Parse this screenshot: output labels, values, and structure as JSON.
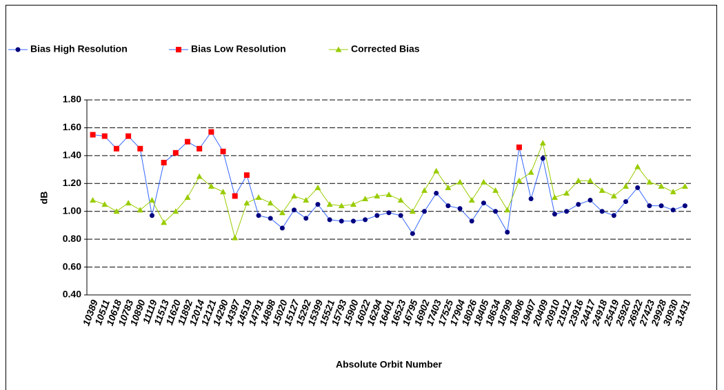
{
  "chart_data": {
    "type": "line",
    "x_label": "Absolute Orbit Number",
    "y_label": "dB",
    "categories": [
      "10389",
      "10511",
      "10618",
      "10783",
      "10890",
      "11119",
      "11513",
      "11620",
      "11892",
      "12014",
      "12121",
      "14290",
      "14397",
      "14519",
      "14791",
      "14898",
      "15020",
      "15127",
      "15292",
      "15399",
      "15521",
      "15793",
      "15900",
      "16022",
      "16294",
      "16401",
      "16523",
      "16795",
      "16902",
      "17403",
      "17525",
      "17904",
      "18026",
      "18405",
      "18634",
      "18799",
      "18906",
      "19407",
      "20409",
      "20910",
      "21912",
      "23916",
      "24417",
      "24918",
      "25419",
      "25920",
      "26922",
      "27423",
      "29928",
      "30930",
      "31431"
    ],
    "series": [
      {
        "name": "Bias High Resolution",
        "color": "#000080",
        "line_color": "#3366ff",
        "marker": "circle",
        "show_line": true,
        "values": [
          1.55,
          1.54,
          1.45,
          1.54,
          1.45,
          0.97,
          1.35,
          1.42,
          1.5,
          1.45,
          1.57,
          1.43,
          1.11,
          1.26,
          0.97,
          0.95,
          0.88,
          1.01,
          0.95,
          1.05,
          0.94,
          0.93,
          0.93,
          0.94,
          0.97,
          0.99,
          0.97,
          0.84,
          1.0,
          1.13,
          1.04,
          1.02,
          0.93,
          1.06,
          1.0,
          0.85,
          1.46,
          1.09,
          1.38,
          0.98,
          1.0,
          1.05,
          1.08,
          1.0,
          0.97,
          1.07,
          1.17,
          1.04,
          1.04,
          1.01,
          1.04
        ]
      },
      {
        "name": "Bias Low Resolution",
        "color": "#ff0000",
        "line_color": "#3366ff",
        "marker": "square",
        "show_line": false,
        "values": [
          1.55,
          1.54,
          1.45,
          1.54,
          1.45,
          null,
          1.35,
          1.42,
          1.5,
          1.45,
          1.57,
          1.43,
          1.11,
          1.26,
          null,
          null,
          null,
          null,
          null,
          null,
          null,
          null,
          null,
          null,
          null,
          null,
          null,
          null,
          null,
          null,
          null,
          null,
          null,
          null,
          null,
          null,
          1.46,
          null,
          null,
          null,
          null,
          null,
          null,
          null,
          null,
          null,
          null,
          null,
          null,
          null,
          null
        ]
      },
      {
        "name": "Corrected Bias",
        "color": "#99cc00",
        "line_color": "#99cc00",
        "marker": "triangle",
        "show_line": true,
        "values": [
          1.08,
          1.05,
          1.0,
          1.06,
          1.01,
          1.08,
          0.92,
          1.0,
          1.1,
          1.25,
          1.18,
          1.14,
          0.81,
          1.06,
          1.1,
          1.06,
          0.99,
          1.11,
          1.08,
          1.17,
          1.05,
          1.04,
          1.05,
          1.09,
          1.11,
          1.12,
          1.08,
          1.0,
          1.15,
          1.29,
          1.17,
          1.21,
          1.08,
          1.21,
          1.15,
          1.01,
          1.22,
          1.28,
          1.49,
          1.1,
          1.13,
          1.22,
          1.22,
          1.15,
          1.11,
          1.18,
          1.32,
          1.21,
          1.18,
          1.14,
          1.18
        ]
      }
    ],
    "ylim": [
      0.4,
      1.8
    ],
    "yticks": [
      {
        "value": 0.4,
        "label": "0.40"
      },
      {
        "value": 0.6,
        "label": "0.60"
      },
      {
        "value": 0.8,
        "label": "0.80"
      },
      {
        "value": 1.0,
        "label": "1.00"
      },
      {
        "value": 1.2,
        "label": "1.20"
      },
      {
        "value": 1.4,
        "label": "1.40"
      },
      {
        "value": 1.6,
        "label": "1.60"
      },
      {
        "value": 1.8,
        "label": "1.80"
      }
    ],
    "grid": true,
    "legend": "top-left"
  }
}
